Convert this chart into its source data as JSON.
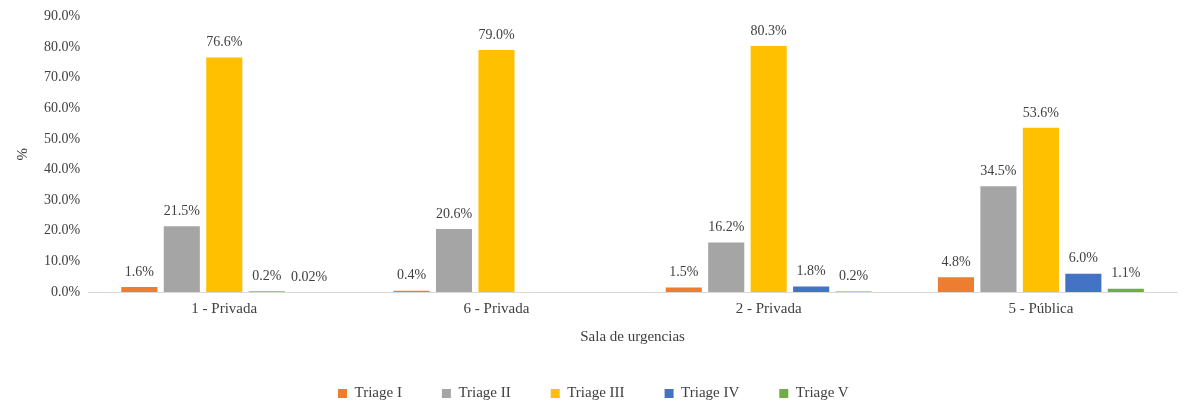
{
  "chart_data": {
    "type": "bar",
    "xlabel": "Sala de urgencias",
    "ylabel": "%",
    "categories": [
      "1 - Privada",
      "6 - Privada",
      "2 - Privada",
      "5 - Pública"
    ],
    "series": [
      {
        "name": "Triage I",
        "color": "#ed7d31",
        "values": [
          1.6,
          0.4,
          1.5,
          4.8
        ],
        "value_labels": [
          "1.6%",
          "0.4%",
          "1.5%",
          "4.8%"
        ]
      },
      {
        "name": "Triage II",
        "color": "#a5a5a5",
        "values": [
          21.5,
          20.6,
          16.2,
          34.5
        ],
        "value_labels": [
          "21.5%",
          "20.6%",
          "16.2%",
          "34.5%"
        ]
      },
      {
        "name": "Triage III",
        "color": "#ffc000",
        "values": [
          76.6,
          79.0,
          80.3,
          53.6
        ],
        "value_labels": [
          "76.6%",
          "79.0%",
          "80.3%",
          "53.6%"
        ]
      },
      {
        "name": "Triage IV",
        "color": "#4472c4",
        "values": [
          0.2,
          null,
          1.8,
          6.0
        ],
        "value_labels": [
          "0.2%",
          null,
          "1.8%",
          "6.0%"
        ]
      },
      {
        "name": "Triage V",
        "color": "#70ad47",
        "values": [
          0.02,
          null,
          0.2,
          1.1
        ],
        "value_labels": [
          "0.02%",
          null,
          "0.2%",
          "1.1%"
        ]
      }
    ],
    "ylim": [
      0,
      90
    ],
    "yticks": [
      {
        "value": 0,
        "label": "0.0%"
      },
      {
        "value": 10,
        "label": "10.0%"
      },
      {
        "value": 20,
        "label": "20.0%"
      },
      {
        "value": 30,
        "label": "30.0%"
      },
      {
        "value": 40,
        "label": "40.0%"
      },
      {
        "value": 50,
        "label": "50.0%"
      },
      {
        "value": 60,
        "label": "60.0%"
      },
      {
        "value": 70,
        "label": "70.0%"
      },
      {
        "value": 80,
        "label": "80.0%"
      },
      {
        "value": 90,
        "label": "90.0%"
      }
    ],
    "grid": false,
    "legend": "bottom"
  }
}
